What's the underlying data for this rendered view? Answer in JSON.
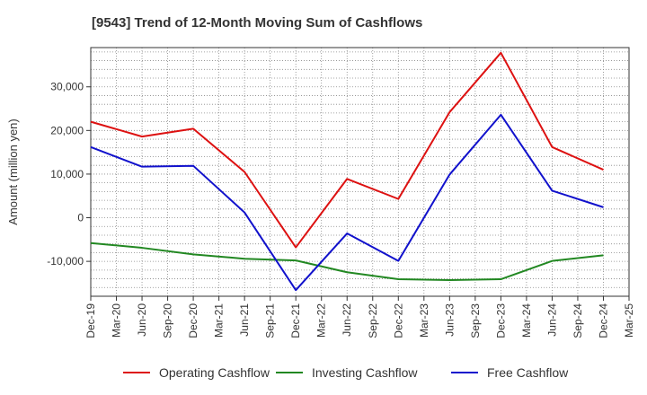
{
  "chart_data": {
    "type": "line",
    "title": "[9543]  Trend of 12-Month Moving Sum of Cashflows",
    "ylabel": "Amount (million yen)",
    "xlabel": "",
    "ylim": [
      -18000,
      39000
    ],
    "yticks": [
      -10000,
      0,
      10000,
      20000,
      30000
    ],
    "ytick_labels": [
      "-10,000",
      "0",
      "10,000",
      "20,000",
      "30,000"
    ],
    "x_tick_labels": [
      "Dec-19",
      "Mar-20",
      "Jun-20",
      "Sep-20",
      "Dec-20",
      "Mar-21",
      "Jun-21",
      "Sep-21",
      "Dec-21",
      "Mar-22",
      "Jun-22",
      "Sep-22",
      "Dec-22",
      "Mar-23",
      "Jun-23",
      "Sep-23",
      "Dec-23",
      "Mar-24",
      "Jun-24",
      "Sep-24",
      "Dec-24",
      "Mar-25"
    ],
    "x": [
      "Dec-19",
      "Jun-20",
      "Dec-20",
      "Jun-21",
      "Dec-21",
      "Jun-22",
      "Dec-22",
      "Jun-23",
      "Dec-23",
      "Jun-24",
      "Dec-24"
    ],
    "grid": true,
    "legend_position": "bottom",
    "series": [
      {
        "name": "Operating Cashflow",
        "color": "#dd1111",
        "values": [
          22000,
          18600,
          20400,
          10500,
          -6800,
          8900,
          4300,
          24200,
          37800,
          16200,
          11000
        ]
      },
      {
        "name": "Investing Cashflow",
        "color": "#228822",
        "values": [
          -5800,
          -6900,
          -8400,
          -9400,
          -9800,
          -12500,
          -14100,
          -14300,
          -14100,
          -9900,
          -8600
        ]
      },
      {
        "name": "Free Cashflow",
        "color": "#1111cc",
        "values": [
          16200,
          11700,
          11900,
          1200,
          -16600,
          -3600,
          -9900,
          9900,
          23600,
          6200,
          2400
        ]
      }
    ]
  }
}
